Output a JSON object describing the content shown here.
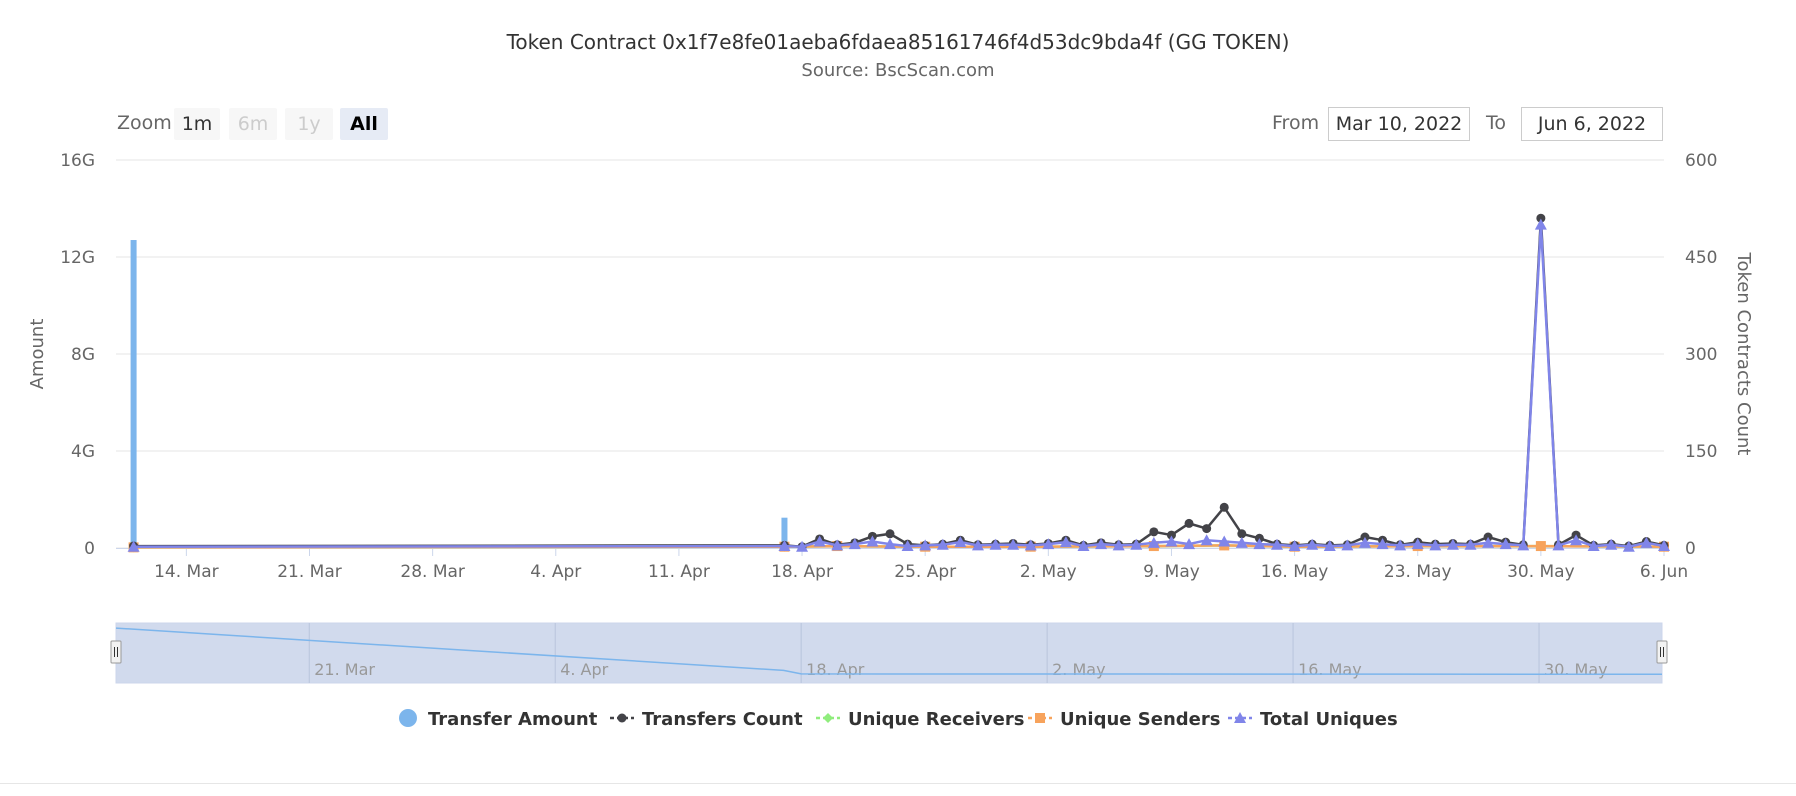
{
  "header": {
    "title": "Token Contract 0x1f7e8fe01aeba6fdaea85161746f4d53dc9bda4f (GG TOKEN)",
    "subtitle": "Source: BscScan.com"
  },
  "range_selector": {
    "zoom_label": "Zoom",
    "buttons": [
      {
        "label": "1m",
        "state": "enabled"
      },
      {
        "label": "6m",
        "state": "disabled"
      },
      {
        "label": "1y",
        "state": "disabled"
      },
      {
        "label": "All",
        "state": "selected"
      }
    ],
    "from_label": "From",
    "from_value": "Mar 10, 2022",
    "to_label": "To",
    "to_value": "Jun 6, 2022"
  },
  "colors": {
    "transfer_amount": "#7cb5ec",
    "transfers_count": "#434348",
    "unique_receivers": "#90ed7d",
    "unique_senders": "#f7a35c",
    "total_uniques": "#8085e9",
    "navigator_fill": "#ccd6eb",
    "grid": "#e6e6e6"
  },
  "chart_data": {
    "type": "line",
    "xlabel": "",
    "x_range": [
      "2022-03-10",
      "2022-06-06"
    ],
    "x_ticks": [
      {
        "date": "2022-03-14",
        "label": "14. Mar"
      },
      {
        "date": "2022-03-21",
        "label": "21. Mar"
      },
      {
        "date": "2022-03-28",
        "label": "28. Mar"
      },
      {
        "date": "2022-04-04",
        "label": "4. Apr"
      },
      {
        "date": "2022-04-11",
        "label": "11. Apr"
      },
      {
        "date": "2022-04-18",
        "label": "18. Apr"
      },
      {
        "date": "2022-04-25",
        "label": "25. Apr"
      },
      {
        "date": "2022-05-02",
        "label": "2. May"
      },
      {
        "date": "2022-05-09",
        "label": "9. May"
      },
      {
        "date": "2022-05-16",
        "label": "16. May"
      },
      {
        "date": "2022-05-23",
        "label": "23. May"
      },
      {
        "date": "2022-05-30",
        "label": "30. May"
      },
      {
        "date": "2022-06-06",
        "label": "6. Jun"
      }
    ],
    "y_left": {
      "label": "Amount",
      "range": [
        0,
        16000000000
      ],
      "ticks": [
        {
          "value": 0,
          "label": "0"
        },
        {
          "value": 4000000000,
          "label": "4G"
        },
        {
          "value": 8000000000,
          "label": "8G"
        },
        {
          "value": 12000000000,
          "label": "12G"
        },
        {
          "value": 16000000000,
          "label": "16G"
        }
      ]
    },
    "y_right": {
      "label": "Token Contracts Count",
      "range": [
        0,
        600
      ],
      "ticks": [
        {
          "value": 0,
          "label": "0"
        },
        {
          "value": 150,
          "label": "150"
        },
        {
          "value": 300,
          "label": "300"
        },
        {
          "value": 450,
          "label": "450"
        },
        {
          "value": 600,
          "label": "600"
        }
      ]
    },
    "grid": true,
    "legend_position": "bottom-center",
    "series": [
      {
        "name": "Transfer Amount",
        "type": "column",
        "axis": "left",
        "points": [
          [
            "2022-03-11",
            12700000000
          ],
          [
            "2022-04-17",
            1250000000
          ]
        ]
      },
      {
        "name": "Transfers Count",
        "type": "line",
        "axis": "right",
        "points": [
          [
            "2022-03-11",
            3
          ],
          [
            "2022-04-17",
            4
          ],
          [
            "2022-04-18",
            2
          ],
          [
            "2022-04-19",
            14
          ],
          [
            "2022-04-20",
            5
          ],
          [
            "2022-04-21",
            8
          ],
          [
            "2022-04-22",
            18
          ],
          [
            "2022-04-23",
            22
          ],
          [
            "2022-04-24",
            6
          ],
          [
            "2022-04-25",
            4
          ],
          [
            "2022-04-26",
            6
          ],
          [
            "2022-04-27",
            12
          ],
          [
            "2022-04-28",
            5
          ],
          [
            "2022-04-29",
            6
          ],
          [
            "2022-04-30",
            7
          ],
          [
            "2022-05-01",
            5
          ],
          [
            "2022-05-02",
            7
          ],
          [
            "2022-05-03",
            12
          ],
          [
            "2022-05-04",
            4
          ],
          [
            "2022-05-05",
            8
          ],
          [
            "2022-05-06",
            5
          ],
          [
            "2022-05-07",
            6
          ],
          [
            "2022-05-08",
            25
          ],
          [
            "2022-05-09",
            20
          ],
          [
            "2022-05-10",
            38
          ],
          [
            "2022-05-11",
            30
          ],
          [
            "2022-05-12",
            63
          ],
          [
            "2022-05-13",
            22
          ],
          [
            "2022-05-14",
            15
          ],
          [
            "2022-05-15",
            6
          ],
          [
            "2022-05-16",
            4
          ],
          [
            "2022-05-17",
            6
          ],
          [
            "2022-05-18",
            4
          ],
          [
            "2022-05-19",
            5
          ],
          [
            "2022-05-20",
            17
          ],
          [
            "2022-05-21",
            12
          ],
          [
            "2022-05-22",
            5
          ],
          [
            "2022-05-23",
            9
          ],
          [
            "2022-05-24",
            6
          ],
          [
            "2022-05-25",
            7
          ],
          [
            "2022-05-26",
            6
          ],
          [
            "2022-05-27",
            17
          ],
          [
            "2022-05-28",
            9
          ],
          [
            "2022-05-29",
            5
          ],
          [
            "2022-05-30",
            510
          ],
          [
            "2022-05-31",
            5
          ],
          [
            "2022-06-01",
            20
          ],
          [
            "2022-06-02",
            4
          ],
          [
            "2022-06-03",
            6
          ],
          [
            "2022-06-04",
            3
          ],
          [
            "2022-06-05",
            10
          ],
          [
            "2022-06-06",
            4
          ]
        ]
      },
      {
        "name": "Unique Receivers",
        "type": "line",
        "axis": "right",
        "points": [
          [
            "2022-03-11",
            1
          ],
          [
            "2022-04-17",
            2
          ],
          [
            "2022-04-20",
            3
          ],
          [
            "2022-04-25",
            2
          ],
          [
            "2022-05-01",
            2
          ],
          [
            "2022-05-08",
            3
          ],
          [
            "2022-05-12",
            4
          ],
          [
            "2022-05-16",
            2
          ],
          [
            "2022-05-23",
            3
          ],
          [
            "2022-05-30",
            3
          ],
          [
            "2022-06-06",
            2
          ]
        ]
      },
      {
        "name": "Unique Senders",
        "type": "line",
        "axis": "right",
        "points": [
          [
            "2022-03-11",
            1
          ],
          [
            "2022-04-17",
            2
          ],
          [
            "2022-04-20",
            3
          ],
          [
            "2022-04-25",
            2
          ],
          [
            "2022-05-01",
            2
          ],
          [
            "2022-05-08",
            3
          ],
          [
            "2022-05-12",
            4
          ],
          [
            "2022-05-16",
            2
          ],
          [
            "2022-05-23",
            3
          ],
          [
            "2022-05-30",
            3
          ],
          [
            "2022-06-06",
            2
          ]
        ]
      },
      {
        "name": "Total Uniques",
        "type": "line",
        "axis": "right",
        "points": [
          [
            "2022-03-11",
            2
          ],
          [
            "2022-04-17",
            3
          ],
          [
            "2022-04-18",
            2
          ],
          [
            "2022-04-19",
            10
          ],
          [
            "2022-04-20",
            4
          ],
          [
            "2022-04-21",
            6
          ],
          [
            "2022-04-22",
            10
          ],
          [
            "2022-04-23",
            6
          ],
          [
            "2022-04-24",
            3
          ],
          [
            "2022-04-25",
            4
          ],
          [
            "2022-04-26",
            5
          ],
          [
            "2022-04-27",
            9
          ],
          [
            "2022-04-28",
            4
          ],
          [
            "2022-04-29",
            5
          ],
          [
            "2022-04-30",
            5
          ],
          [
            "2022-05-01",
            4
          ],
          [
            "2022-05-02",
            6
          ],
          [
            "2022-05-03",
            9
          ],
          [
            "2022-05-04",
            3
          ],
          [
            "2022-05-05",
            6
          ],
          [
            "2022-05-06",
            4
          ],
          [
            "2022-05-07",
            5
          ],
          [
            "2022-05-08",
            8
          ],
          [
            "2022-05-09",
            10
          ],
          [
            "2022-05-10",
            6
          ],
          [
            "2022-05-11",
            12
          ],
          [
            "2022-05-12",
            10
          ],
          [
            "2022-05-13",
            8
          ],
          [
            "2022-05-14",
            6
          ],
          [
            "2022-05-15",
            5
          ],
          [
            "2022-05-16",
            3
          ],
          [
            "2022-05-17",
            5
          ],
          [
            "2022-05-18",
            3
          ],
          [
            "2022-05-19",
            4
          ],
          [
            "2022-05-20",
            8
          ],
          [
            "2022-05-21",
            6
          ],
          [
            "2022-05-22",
            4
          ],
          [
            "2022-05-23",
            6
          ],
          [
            "2022-05-24",
            4
          ],
          [
            "2022-05-25",
            5
          ],
          [
            "2022-05-26",
            5
          ],
          [
            "2022-05-27",
            8
          ],
          [
            "2022-05-28",
            6
          ],
          [
            "2022-05-29",
            4
          ],
          [
            "2022-05-30",
            500
          ],
          [
            "2022-05-31",
            4
          ],
          [
            "2022-06-01",
            12
          ],
          [
            "2022-06-02",
            3
          ],
          [
            "2022-06-03",
            5
          ],
          [
            "2022-06-04",
            2
          ],
          [
            "2022-06-05",
            8
          ],
          [
            "2022-06-06",
            3
          ]
        ]
      }
    ],
    "navigator": {
      "x_ticks": [
        {
          "date": "2022-03-21",
          "label": "21. Mar"
        },
        {
          "date": "2022-04-04",
          "label": "4. Apr"
        },
        {
          "date": "2022-04-18",
          "label": "18. Apr"
        },
        {
          "date": "2022-05-02",
          "label": "2. May"
        },
        {
          "date": "2022-05-16",
          "label": "16. May"
        },
        {
          "date": "2022-05-30",
          "label": "30. May"
        }
      ]
    }
  }
}
